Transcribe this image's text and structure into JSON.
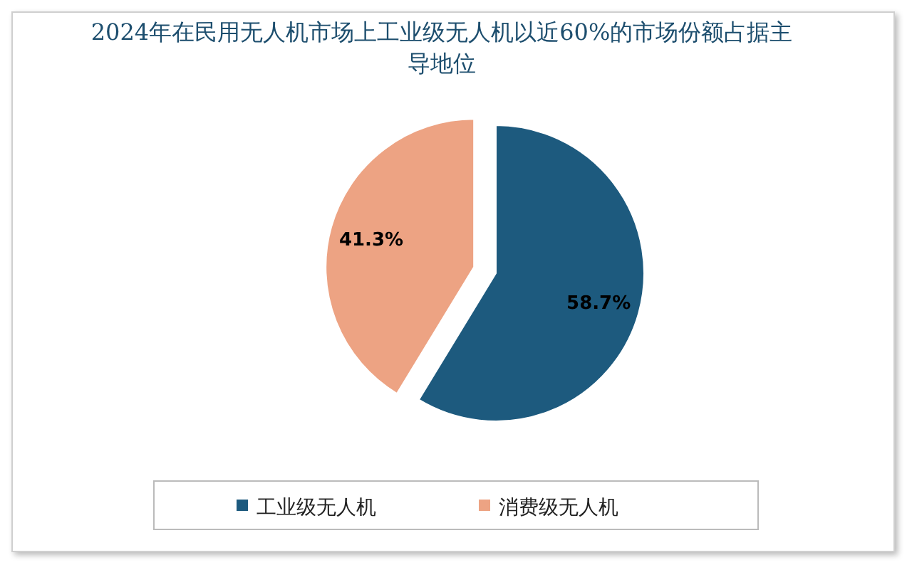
{
  "chart_data": {
    "type": "pie",
    "title": "2024年在民用无人机市场上工业级无人机以近60%的市场份额占据主导地位",
    "categories": [
      "工业级无人机",
      "消费级无人机"
    ],
    "values": [
      58.7,
      41.3
    ],
    "value_labels": [
      "58.7%",
      "41.3%"
    ],
    "colors": [
      "#1d5a7e",
      "#eda383"
    ],
    "legend": "bottom"
  }
}
